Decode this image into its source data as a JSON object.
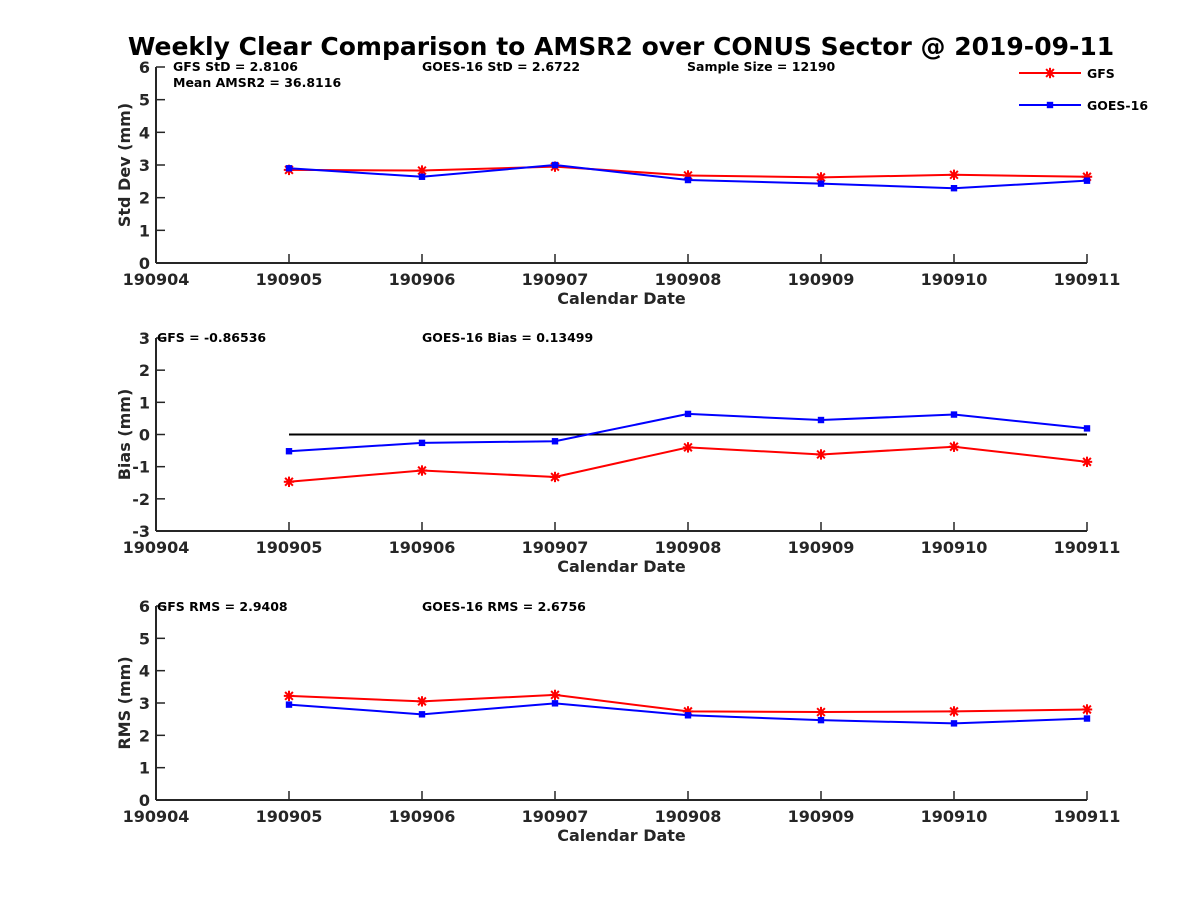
{
  "figure_title": "Weekly Clear Comparison to AMSR2 over CONUS Sector @ 2019-09-11",
  "legend": {
    "placement": "top-right",
    "entries": [
      {
        "label": "GFS",
        "color": "#ff0000",
        "marker": "asterisk"
      },
      {
        "label": "GOES-16",
        "color": "#0000ff",
        "marker": "square"
      }
    ]
  },
  "colors": {
    "gfs": "#ff0000",
    "goes": "#0000ff",
    "zero_line": "#000000",
    "axes": "#262626"
  },
  "chart_data": [
    {
      "type": "line",
      "xlabel": "Calendar Date",
      "ylabel": "Std Dev (mm)",
      "categories": [
        "190904",
        "190905",
        "190906",
        "190907",
        "190908",
        "190909",
        "190910",
        "190911"
      ],
      "ylim": [
        0,
        6
      ],
      "yticks": [
        "0",
        "1",
        "2",
        "3",
        "4",
        "5",
        "6"
      ],
      "grid": false,
      "annotations": [
        "GFS StD = 2.8106",
        "Mean AMSR2 = 36.8116",
        "GOES-16 StD = 2.6722",
        "Sample Size = 12190"
      ],
      "series": [
        {
          "name": "GFS",
          "x": [
            "190905",
            "190906",
            "190907",
            "190908",
            "190909",
            "190910",
            "190911"
          ],
          "values": [
            2.85,
            2.83,
            2.95,
            2.68,
            2.62,
            2.7,
            2.64
          ]
        },
        {
          "name": "GOES-16",
          "x": [
            "190905",
            "190906",
            "190907",
            "190908",
            "190909",
            "190910",
            "190911"
          ],
          "values": [
            2.9,
            2.64,
            3.0,
            2.54,
            2.43,
            2.29,
            2.52
          ]
        }
      ]
    },
    {
      "type": "line",
      "xlabel": "Calendar Date",
      "ylabel": "Bias (mm)",
      "categories": [
        "190904",
        "190905",
        "190906",
        "190907",
        "190908",
        "190909",
        "190910",
        "190911"
      ],
      "ylim": [
        -3,
        3
      ],
      "yticks": [
        "-3",
        "-2",
        "-1",
        "0",
        "1",
        "2",
        "3"
      ],
      "grid": false,
      "annotations": [
        "GFS = -0.86536",
        "GOES-16 Bias  = 0.13499"
      ],
      "reference_line": {
        "y": 0,
        "x": [
          "190905",
          "190911"
        ]
      },
      "series": [
        {
          "name": "GFS",
          "x": [
            "190905",
            "190906",
            "190907",
            "190908",
            "190909",
            "190910",
            "190911"
          ],
          "values": [
            -1.47,
            -1.12,
            -1.32,
            -0.4,
            -0.62,
            -0.38,
            -0.85
          ]
        },
        {
          "name": "GOES-16",
          "x": [
            "190905",
            "190906",
            "190907",
            "190908",
            "190909",
            "190910",
            "190911"
          ],
          "values": [
            -0.52,
            -0.26,
            -0.21,
            0.64,
            0.45,
            0.62,
            0.19
          ]
        }
      ]
    },
    {
      "type": "line",
      "xlabel": "Calendar Date",
      "ylabel": "RMS (mm)",
      "categories": [
        "190904",
        "190905",
        "190906",
        "190907",
        "190908",
        "190909",
        "190910",
        "190911"
      ],
      "ylim": [
        0,
        6
      ],
      "yticks": [
        "0",
        "1",
        "2",
        "3",
        "4",
        "5",
        "6"
      ],
      "grid": false,
      "annotations": [
        "GFS RMS = 2.9408",
        "GOES-16 RMS = 2.6756"
      ],
      "series": [
        {
          "name": "GFS",
          "x": [
            "190905",
            "190906",
            "190907",
            "190908",
            "190909",
            "190910",
            "190911"
          ],
          "values": [
            3.22,
            3.05,
            3.25,
            2.74,
            2.72,
            2.74,
            2.8
          ]
        },
        {
          "name": "GOES-16",
          "x": [
            "190905",
            "190906",
            "190907",
            "190908",
            "190909",
            "190910",
            "190911"
          ],
          "values": [
            2.95,
            2.65,
            2.99,
            2.62,
            2.47,
            2.37,
            2.52
          ]
        }
      ]
    }
  ]
}
